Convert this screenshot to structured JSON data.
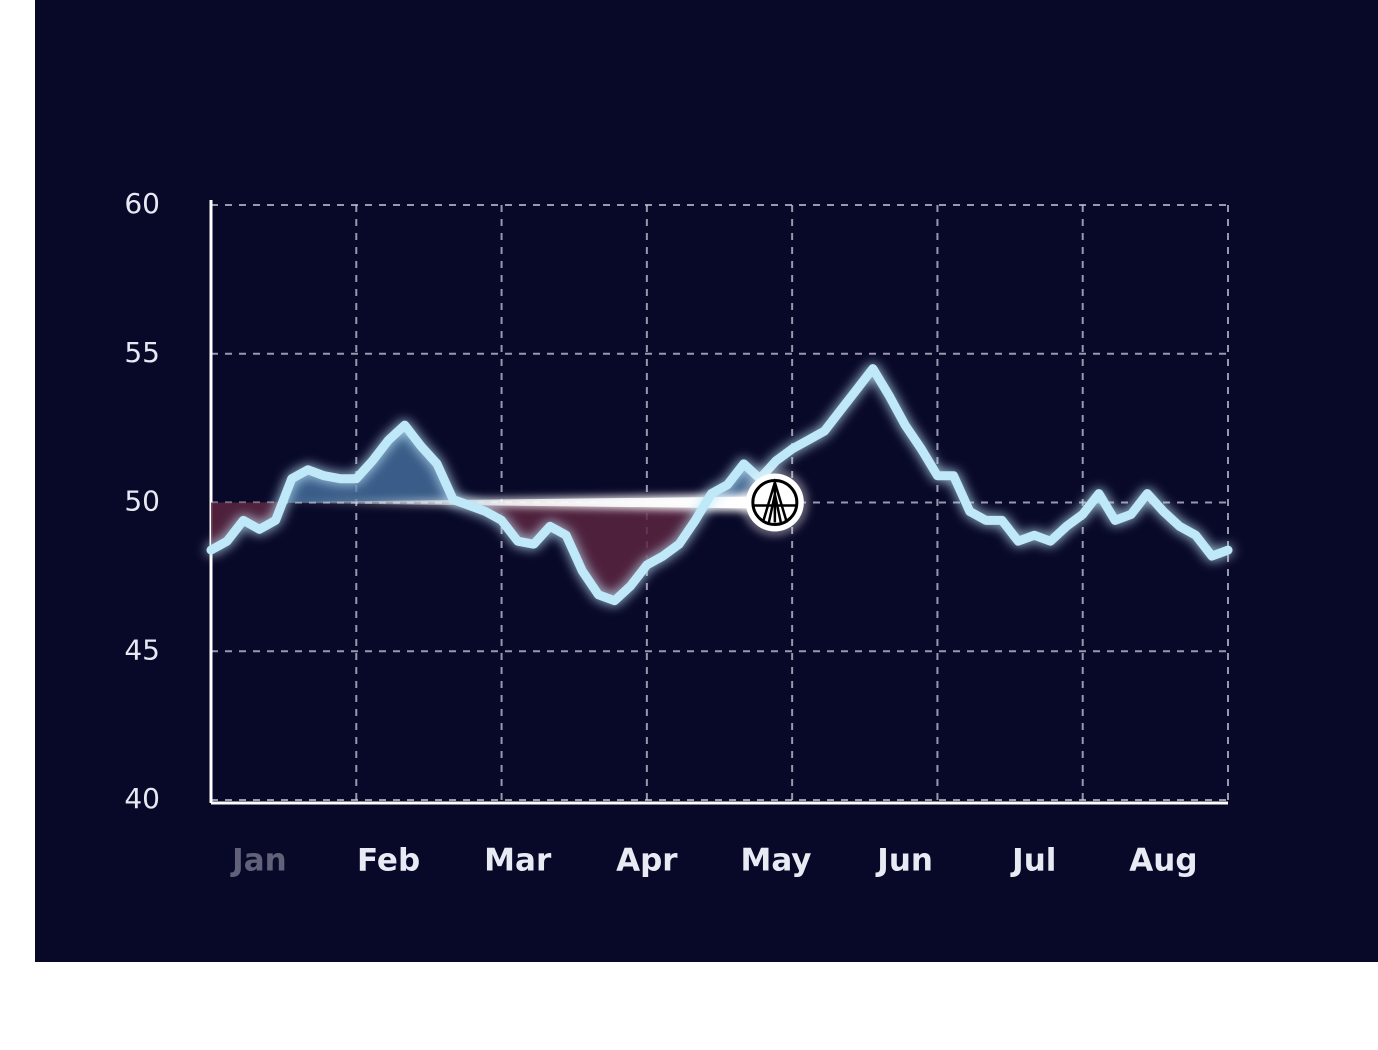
{
  "chart_data": {
    "type": "line",
    "categories": [
      null,
      null,
      null,
      "Jan",
      null,
      null,
      null,
      null,
      null,
      null,
      null,
      "Feb",
      null,
      null,
      null,
      null,
      null,
      null,
      null,
      "Mar",
      null,
      null,
      null,
      null,
      null,
      null,
      null,
      "Apr",
      null,
      null,
      null,
      null,
      null,
      null,
      null,
      "May",
      null,
      null,
      null,
      null,
      null,
      null,
      null,
      "Jun",
      null,
      null,
      null,
      null,
      null,
      null,
      null,
      "Jul",
      null,
      null,
      null,
      null,
      null,
      null,
      null,
      "Aug",
      null,
      null,
      null,
      null
    ],
    "series": [
      {
        "color": "#bfe8f8",
        "values": [
          48.4,
          48.7,
          49.4,
          49.1,
          49.4,
          50.8,
          51.1,
          50.9,
          50.8,
          50.8,
          51.4,
          52.1,
          52.6,
          51.9,
          51.3,
          50.1,
          49.9,
          49.7,
          49.4,
          48.7,
          48.6,
          49.2,
          48.9,
          47.7,
          46.9,
          46.7,
          47.2,
          47.9,
          48.2,
          48.6,
          49.4,
          50.3,
          50.6,
          51.3,
          50.8,
          51.4,
          51.8,
          52.1,
          52.4,
          53.1,
          53.8,
          54.5,
          53.6,
          52.6,
          51.8,
          50.9,
          50.9,
          49.7,
          49.4,
          49.4,
          48.7,
          48.9,
          48.7,
          49.2,
          49.6,
          50.3,
          49.4,
          49.6,
          50.3,
          49.7,
          49.2,
          48.9,
          48.2,
          48.4
        ]
      }
    ],
    "ylim": [
      40,
      60
    ],
    "yticks": [
      40,
      45,
      50,
      55,
      60
    ],
    "grid": true
  }
}
